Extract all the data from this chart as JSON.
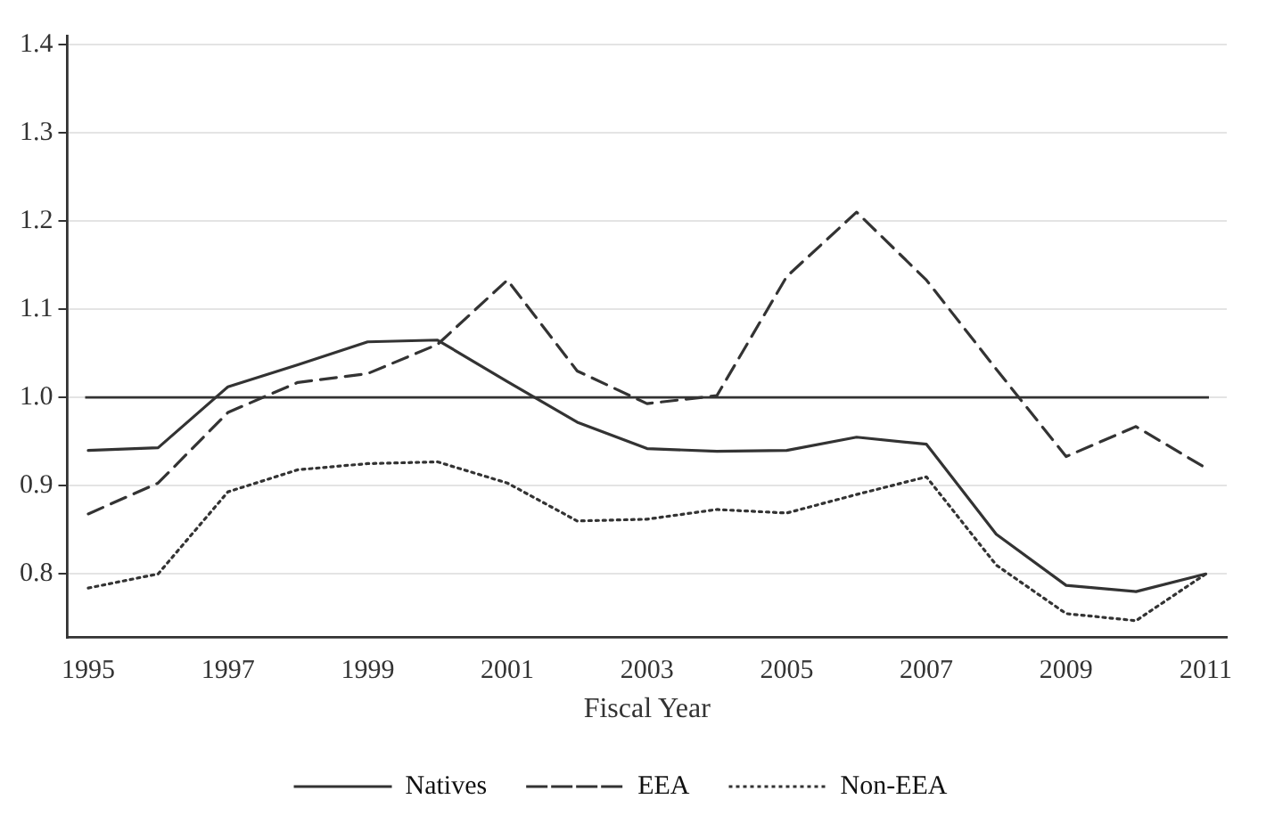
{
  "chart_data": {
    "type": "line",
    "xlabel": "Fiscal Year",
    "x": [
      1995,
      1996,
      1997,
      1998,
      1999,
      2000,
      2001,
      2002,
      2003,
      2004,
      2005,
      2006,
      2007,
      2008,
      2009,
      2010,
      2011
    ],
    "series": [
      {
        "name": "Natives",
        "color": "#333333",
        "line_style": "solid",
        "values": [
          0.94,
          0.943,
          1.012,
          1.037,
          1.063,
          1.065,
          1.018,
          0.972,
          0.942,
          0.939,
          0.94,
          0.955,
          0.947,
          0.845,
          0.787,
          0.78,
          0.8
        ]
      },
      {
        "name": "EEA",
        "color": "#333333",
        "line_style": "dashed",
        "values": [
          0.868,
          0.903,
          0.983,
          1.017,
          1.027,
          1.06,
          1.133,
          1.03,
          0.993,
          1.002,
          1.137,
          1.21,
          1.133,
          1.032,
          0.933,
          0.967,
          0.92
        ]
      },
      {
        "name": "Non-EEA",
        "color": "#333333",
        "line_style": "dotted",
        "values": [
          0.784,
          0.8,
          0.893,
          0.918,
          0.925,
          0.927,
          0.903,
          0.86,
          0.862,
          0.873,
          0.869,
          0.89,
          0.91,
          0.81,
          0.755,
          0.747,
          0.8
        ]
      }
    ],
    "xlim": [
      1994.7,
      2011.3
    ],
    "xticks": [
      1995,
      1997,
      1999,
      2001,
      2003,
      2005,
      2007,
      2009,
      2011
    ],
    "ylim": [
      0.728,
      1.41
    ],
    "yticks": [
      {
        "value": 0.8,
        "label": "0.8"
      },
      {
        "value": 0.9,
        "label": "0.9"
      },
      {
        "value": 1.0,
        "label": "1.0"
      },
      {
        "value": 1.1,
        "label": "1.1"
      },
      {
        "value": 1.2,
        "label": "1.2"
      },
      {
        "value": 1.3,
        "label": "1.3"
      },
      {
        "value": 1.4,
        "label": "1.4"
      }
    ],
    "ref_lines": [
      {
        "axis": "y",
        "value": 1.0,
        "color": "#333333"
      }
    ],
    "grid": "y",
    "legend": "bottom",
    "marker": "none"
  }
}
